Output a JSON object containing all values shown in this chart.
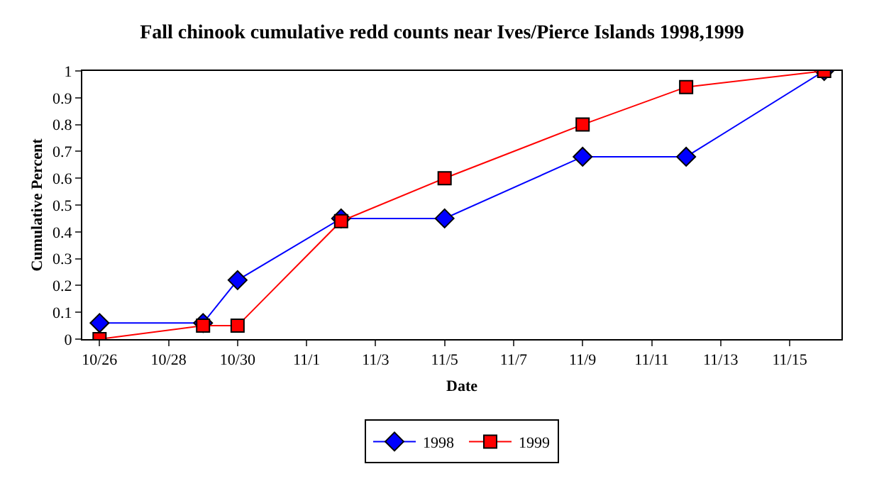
{
  "chart_data": {
    "type": "line",
    "title": "Fall chinook cumulative redd counts near Ives/Pierce Islands 1998,1999",
    "xlabel": "Date",
    "ylabel": "Cumulative Percent",
    "x": [
      "--10-26",
      "--10-29",
      "--10-30",
      "--11-02",
      "--11-05",
      "--11-09",
      "--11-12",
      "--11-16"
    ],
    "series": [
      {
        "name": "1998",
        "color": "#0000ff",
        "marker": "diamond",
        "values": [
          0.06,
          0.06,
          0.22,
          0.45,
          0.45,
          0.68,
          0.68,
          1.0
        ]
      },
      {
        "name": "1999",
        "color": "#ff0000",
        "marker": "square",
        "values": [
          0,
          0.05,
          0.05,
          0.44,
          0.6,
          0.8,
          0.94,
          1.0
        ]
      }
    ],
    "xlim": [
      "--10-25T12:00",
      "--11-16T12:00"
    ],
    "xticks": [
      {
        "value": "--10-26",
        "label": "10/26"
      },
      {
        "value": "--10-28",
        "label": "10/28"
      },
      {
        "value": "--10-30",
        "label": "10/30"
      },
      {
        "value": "--11-01",
        "label": "11/1"
      },
      {
        "value": "--11-03",
        "label": "11/3"
      },
      {
        "value": "--11-05",
        "label": "11/5"
      },
      {
        "value": "--11-07",
        "label": "11/7"
      },
      {
        "value": "--11-09",
        "label": "11/9"
      },
      {
        "value": "--11-11",
        "label": "11/11"
      },
      {
        "value": "--11-13",
        "label": "11/13"
      },
      {
        "value": "--11-15",
        "label": "11/15"
      }
    ],
    "ylim": [
      0,
      1
    ],
    "yticks": [
      0,
      0.1,
      0.2,
      0.3,
      0.4,
      0.5,
      0.6,
      0.7,
      0.8,
      0.9,
      1
    ],
    "legend": "bottom",
    "line_style": "solid"
  }
}
